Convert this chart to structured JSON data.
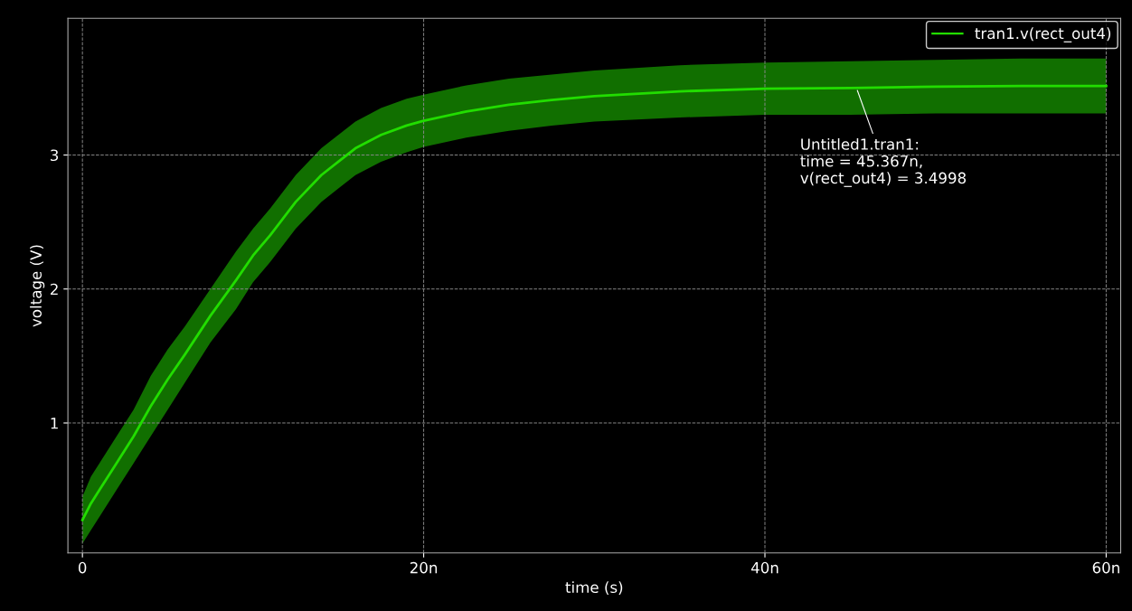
{
  "chart_data": {
    "type": "line",
    "xlabel": "time (s)",
    "ylabel": "voltage (V)",
    "x": [
      0,
      0.5,
      1,
      2,
      3,
      4,
      5,
      6,
      7.5,
      9,
      10,
      11,
      12.5,
      14,
      15,
      16,
      17.5,
      19,
      20,
      22.5,
      25,
      27.5,
      30,
      35,
      40,
      45,
      50,
      55,
      60
    ],
    "series": [
      {
        "name": "tran1.v(rect_out4)",
        "color": "#22dd00",
        "values": [
          0.275,
          0.4,
          0.5,
          0.7,
          0.9,
          1.125,
          1.325,
          1.51,
          1.8,
          2.065,
          2.25,
          2.4,
          2.65,
          2.85,
          2.95,
          3.05,
          3.15,
          3.22,
          3.255,
          3.325,
          3.375,
          3.41,
          3.44,
          3.475,
          3.495,
          3.5,
          3.51,
          3.515,
          3.515
        ],
        "lower": [
          0.1,
          0.2,
          0.3,
          0.5,
          0.7,
          0.9,
          1.1,
          1.3,
          1.6,
          1.85,
          2.05,
          2.2,
          2.45,
          2.65,
          2.75,
          2.85,
          2.95,
          3.02,
          3.06,
          3.13,
          3.18,
          3.22,
          3.25,
          3.28,
          3.3,
          3.3,
          3.31,
          3.31,
          3.31
        ],
        "upper": [
          0.45,
          0.6,
          0.7,
          0.9,
          1.1,
          1.35,
          1.55,
          1.72,
          2.0,
          2.28,
          2.45,
          2.6,
          2.85,
          3.05,
          3.15,
          3.25,
          3.35,
          3.42,
          3.45,
          3.52,
          3.57,
          3.6,
          3.63,
          3.67,
          3.69,
          3.7,
          3.71,
          3.72,
          3.72
        ]
      }
    ],
    "xlim": [
      -0.85,
      60.85
    ],
    "ylim": [
      0.03,
      4.02
    ],
    "xticks": [
      0,
      {
        "value": 20,
        "label": "20n"
      },
      {
        "value": 40,
        "label": "40n"
      },
      {
        "value": 60,
        "label": "60n"
      }
    ],
    "yticks": [
      1,
      2,
      3
    ],
    "grid": true,
    "legend": "top right",
    "line_style": "solid",
    "marker": "none",
    "annotations": [
      {
        "text": "Untitled1.tran1:\ntime = 45.367n,\nv(rect_out4) = 3.4998",
        "x": 45.367,
        "y": 3.4998
      }
    ]
  }
}
